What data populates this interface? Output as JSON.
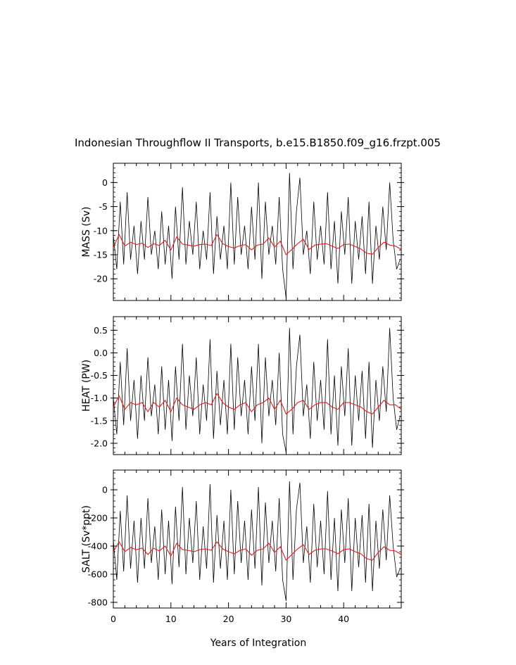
{
  "title": "Indonesian Throughflow II Transports, b.e15.B1850.f09_g16.frzpt.005",
  "xlabel": "Years of Integration",
  "colors": {
    "raw": "#000000",
    "smoothed": "#e41a1c",
    "axes": "#000000"
  },
  "chart_data": [
    {
      "type": "line",
      "ylabel": "MASS (Sv)",
      "xlim": [
        0,
        50
      ],
      "ylim": [
        -24.5,
        4
      ],
      "x_ticks": [
        "0",
        "10",
        "20",
        "30",
        "40"
      ],
      "y_ticks": [
        "0",
        "-5",
        "-10",
        "-15",
        "-20"
      ],
      "series": [
        {
          "role": "smoothed",
          "x": [
            0,
            1,
            2,
            3,
            4,
            5,
            6,
            7,
            8,
            9,
            10,
            11,
            12,
            13,
            14,
            15,
            16,
            17,
            18,
            19,
            20,
            21,
            22,
            23,
            24,
            25,
            26,
            27,
            28,
            29,
            30,
            31,
            32,
            33,
            34,
            35,
            36,
            37,
            38,
            39,
            40,
            41,
            42,
            43,
            44,
            45,
            46,
            47,
            48,
            49,
            50
          ],
          "values": [
            -13.5,
            -10.8,
            -13.2,
            -12.4,
            -12.9,
            -12.6,
            -13.5,
            -12.7,
            -13.1,
            -12.0,
            -14.0,
            -11.3,
            -12.8,
            -13.0,
            -13.2,
            -12.9,
            -12.8,
            -13.1,
            -10.8,
            -12.7,
            -13.3,
            -13.6,
            -13.1,
            -12.9,
            -14.0,
            -13.0,
            -12.8,
            -11.5,
            -13.4,
            -12.2,
            -15.0,
            -13.9,
            -12.7,
            -11.8,
            -13.9,
            -13.0,
            -12.8,
            -12.7,
            -13.2,
            -13.7,
            -12.9,
            -12.8,
            -13.3,
            -13.8,
            -14.7,
            -14.9,
            -13.5,
            -12.4,
            -13.0,
            -13.2,
            -13.9
          ]
        },
        {
          "role": "raw",
          "x": [
            0,
            0.6,
            1.2,
            1.8,
            2.4,
            3.0,
            3.6,
            4.2,
            4.8,
            5.4,
            6.0,
            6.6,
            7.2,
            7.8,
            8.4,
            9.0,
            9.6,
            10.2,
            10.8,
            11.4,
            12.0,
            12.6,
            13.2,
            13.8,
            14.4,
            15.0,
            15.6,
            16.2,
            16.8,
            17.4,
            18.0,
            18.6,
            19.2,
            19.8,
            20.4,
            21.0,
            21.6,
            22.2,
            22.8,
            23.4,
            24.0,
            24.6,
            25.2,
            25.8,
            26.4,
            27.0,
            27.6,
            28.2,
            28.8,
            29.4,
            30.0,
            30.6,
            31.2,
            31.8,
            32.4,
            33.0,
            33.6,
            34.2,
            34.8,
            35.4,
            36.0,
            36.6,
            37.2,
            37.8,
            38.4,
            39.0,
            39.6,
            40.2,
            40.8,
            41.4,
            42.0,
            42.6,
            43.2,
            43.8,
            44.4,
            45.0,
            45.6,
            46.2,
            46.8,
            47.4,
            48.0,
            48.6,
            49.2,
            49.8
          ],
          "values": [
            -11,
            -18,
            -4,
            -17,
            -2,
            -16,
            -9,
            -19,
            -8,
            -16,
            -3,
            -15,
            -10,
            -18,
            -6,
            -17,
            -9,
            -20,
            -5,
            -16,
            -1,
            -17,
            -8,
            -15,
            -4,
            -18,
            -10,
            -16,
            -2,
            -19,
            -7,
            -16,
            -9,
            -18,
            0,
            -17,
            -3,
            -15,
            -9,
            -18,
            -5,
            -16,
            0,
            -20,
            -4,
            -15,
            -9,
            -17,
            -3,
            -18,
            -24,
            2,
            -18,
            -6,
            1,
            -15,
            -10,
            -19,
            -4,
            -16,
            -9,
            -17,
            -2,
            -18,
            -8,
            -21,
            -6,
            -15,
            -3,
            -21,
            -8,
            -16,
            -7,
            -19,
            -4,
            -21,
            -9,
            -16,
            -5,
            -14,
            0,
            -12,
            -18,
            -16
          ]
        }
      ]
    },
    {
      "type": "line",
      "ylabel": "HEAT (PW)",
      "xlim": [
        0,
        50
      ],
      "ylim": [
        -2.25,
        0.8
      ],
      "x_ticks": [
        "0",
        "10",
        "20",
        "30",
        "40"
      ],
      "y_ticks": [
        "0.5",
        "0.0",
        "-0.5",
        "-1.0",
        "-1.5",
        "-2.0"
      ],
      "series": [
        {
          "role": "smoothed",
          "x": [
            0,
            1,
            2,
            3,
            4,
            5,
            6,
            7,
            8,
            9,
            10,
            11,
            12,
            13,
            14,
            15,
            16,
            17,
            18,
            19,
            20,
            21,
            22,
            23,
            24,
            25,
            26,
            27,
            28,
            29,
            30,
            31,
            32,
            33,
            34,
            35,
            36,
            37,
            38,
            39,
            40,
            41,
            42,
            43,
            44,
            45,
            46,
            47,
            48,
            49,
            50
          ],
          "values": [
            -1.2,
            -0.95,
            -1.25,
            -1.1,
            -1.15,
            -1.1,
            -1.3,
            -1.1,
            -1.2,
            -1.05,
            -1.3,
            -1.0,
            -1.15,
            -1.2,
            -1.25,
            -1.15,
            -1.1,
            -1.15,
            -0.9,
            -1.1,
            -1.2,
            -1.25,
            -1.15,
            -1.1,
            -1.3,
            -1.15,
            -1.1,
            -1.0,
            -1.25,
            -1.05,
            -1.35,
            -1.25,
            -1.1,
            -1.05,
            -1.25,
            -1.15,
            -1.1,
            -1.1,
            -1.2,
            -1.25,
            -1.1,
            -1.1,
            -1.15,
            -1.2,
            -1.3,
            -1.35,
            -1.2,
            -1.05,
            -1.15,
            -1.15,
            -1.25
          ]
        },
        {
          "role": "raw",
          "x": [
            0,
            0.6,
            1.2,
            1.8,
            2.4,
            3.0,
            3.6,
            4.2,
            4.8,
            5.4,
            6.0,
            6.6,
            7.2,
            7.8,
            8.4,
            9.0,
            9.6,
            10.2,
            10.8,
            11.4,
            12.0,
            12.6,
            13.2,
            13.8,
            14.4,
            15.0,
            15.6,
            16.2,
            16.8,
            17.4,
            18.0,
            18.6,
            19.2,
            19.8,
            20.4,
            21.0,
            21.6,
            22.2,
            22.8,
            23.4,
            24.0,
            24.6,
            25.2,
            25.8,
            26.4,
            27.0,
            27.6,
            28.2,
            28.8,
            29.4,
            30.0,
            30.6,
            31.2,
            31.8,
            32.4,
            33.0,
            33.6,
            34.2,
            34.8,
            35.4,
            36.0,
            36.6,
            37.2,
            37.8,
            38.4,
            39.0,
            39.6,
            40.2,
            40.8,
            41.4,
            42.0,
            42.6,
            43.2,
            43.8,
            44.4,
            45.0,
            45.6,
            46.2,
            46.8,
            47.4,
            48.0,
            48.6,
            49.2,
            49.8
          ],
          "values": [
            -1.0,
            -1.8,
            -0.2,
            -1.6,
            0.1,
            -1.5,
            -0.6,
            -1.9,
            -0.5,
            -1.5,
            -0.1,
            -1.4,
            -0.7,
            -1.8,
            -0.3,
            -1.7,
            -0.6,
            -1.95,
            -0.3,
            -1.5,
            0.2,
            -1.7,
            -0.5,
            -1.4,
            -0.1,
            -1.8,
            -0.7,
            -1.5,
            0.3,
            -1.9,
            -0.4,
            -1.6,
            -0.6,
            -1.8,
            0.2,
            -1.7,
            -0.1,
            -1.4,
            -0.6,
            -1.8,
            -0.3,
            -1.5,
            0.2,
            -2.0,
            -0.1,
            -1.4,
            -0.6,
            -1.6,
            0.0,
            -1.8,
            -2.2,
            0.55,
            -1.8,
            -0.3,
            0.4,
            -1.4,
            -0.7,
            -1.9,
            -0.2,
            -1.5,
            -0.6,
            -1.7,
            0.3,
            -1.8,
            -0.5,
            -2.05,
            -0.3,
            -1.4,
            0.1,
            -2.05,
            -0.5,
            -1.5,
            -0.4,
            -1.9,
            -0.2,
            -2.1,
            -0.6,
            -1.5,
            -0.3,
            -1.3,
            0.55,
            -1.0,
            -1.7,
            -1.4
          ]
        }
      ]
    },
    {
      "type": "line",
      "ylabel": "SALT (Sv*ppt)",
      "xlim": [
        0,
        50
      ],
      "ylim": [
        -840,
        140
      ],
      "x_ticks": [
        "0",
        "10",
        "20",
        "30",
        "40"
      ],
      "y_ticks": [
        "0",
        "-200",
        "-400",
        "-600",
        "-800"
      ],
      "series": [
        {
          "role": "smoothed",
          "x": [
            0,
            1,
            2,
            3,
            4,
            5,
            6,
            7,
            8,
            9,
            10,
            11,
            12,
            13,
            14,
            15,
            16,
            17,
            18,
            19,
            20,
            21,
            22,
            23,
            24,
            25,
            26,
            27,
            28,
            29,
            30,
            31,
            32,
            33,
            34,
            35,
            36,
            37,
            38,
            39,
            40,
            41,
            42,
            43,
            44,
            45,
            46,
            47,
            48,
            49,
            50
          ],
          "values": [
            -440,
            -370,
            -440,
            -410,
            -425,
            -415,
            -460,
            -415,
            -435,
            -400,
            -470,
            -380,
            -425,
            -430,
            -440,
            -425,
            -420,
            -430,
            -370,
            -420,
            -440,
            -455,
            -430,
            -420,
            -465,
            -430,
            -420,
            -380,
            -445,
            -405,
            -500,
            -460,
            -420,
            -390,
            -460,
            -430,
            -420,
            -420,
            -435,
            -455,
            -425,
            -420,
            -440,
            -455,
            -490,
            -500,
            -445,
            -405,
            -430,
            -435,
            -460
          ]
        },
        {
          "role": "raw",
          "x": [
            0,
            0.6,
            1.2,
            1.8,
            2.4,
            3.0,
            3.6,
            4.2,
            4.8,
            5.4,
            6.0,
            6.6,
            7.2,
            7.8,
            8.4,
            9.0,
            9.6,
            10.2,
            10.8,
            11.4,
            12.0,
            12.6,
            13.2,
            13.8,
            14.4,
            15.0,
            15.6,
            16.2,
            16.8,
            17.4,
            18.0,
            18.6,
            19.2,
            19.8,
            20.4,
            21.0,
            21.6,
            22.2,
            22.8,
            23.4,
            24.0,
            24.6,
            25.2,
            25.8,
            26.4,
            27.0,
            27.6,
            28.2,
            28.8,
            29.4,
            30.0,
            30.6,
            31.2,
            31.8,
            32.4,
            33.0,
            33.6,
            34.2,
            34.8,
            35.4,
            36.0,
            36.6,
            37.2,
            37.8,
            38.4,
            39.0,
            39.6,
            40.2,
            40.8,
            41.4,
            42.0,
            42.6,
            43.2,
            43.8,
            44.4,
            45.0,
            45.6,
            46.2,
            46.8,
            47.4,
            48.0,
            48.6,
            49.2,
            49.8
          ],
          "values": [
            -360,
            -640,
            -150,
            -580,
            -40,
            -560,
            -220,
            -660,
            -200,
            -560,
            -60,
            -520,
            -260,
            -640,
            -140,
            -600,
            -220,
            -670,
            -120,
            -550,
            20,
            -600,
            -200,
            -520,
            -80,
            -640,
            -260,
            -560,
            40,
            -660,
            -180,
            -560,
            -220,
            -640,
            0,
            -600,
            -80,
            -520,
            -220,
            -640,
            -140,
            -560,
            20,
            -680,
            -90,
            -520,
            -220,
            -580,
            -60,
            -640,
            -790,
            60,
            -640,
            -140,
            50,
            -520,
            -260,
            -660,
            -100,
            -550,
            -220,
            -600,
            -10,
            -640,
            -200,
            -720,
            -140,
            -520,
            -60,
            -720,
            -200,
            -550,
            -180,
            -660,
            -100,
            -720,
            -220,
            -560,
            -140,
            -500,
            -40,
            -400,
            -620,
            -560
          ]
        }
      ]
    }
  ]
}
